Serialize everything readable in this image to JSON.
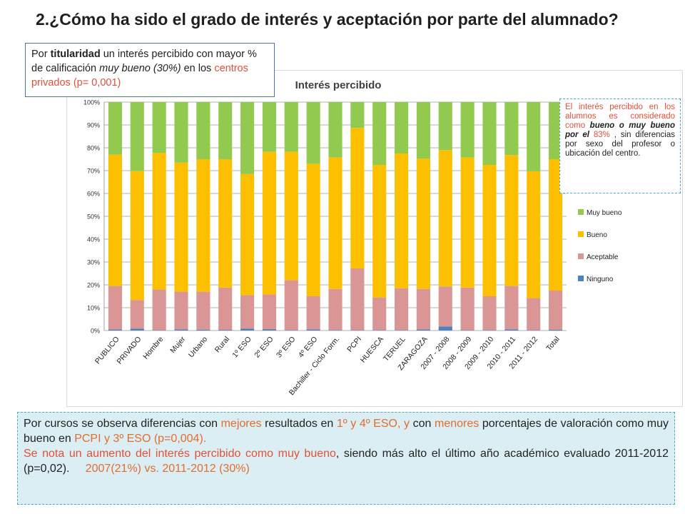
{
  "slide": {
    "title": "2.¿Cómo ha sido el grado de interés y aceptación por parte del alumnado?"
  },
  "note_titularidad": {
    "t1": "Por ",
    "t2": "titularidad",
    "t3": " un interés percibido con mayor % de calificación ",
    "t4": "muy bueno (30%)",
    "t5": " en los ",
    "t6": "centros privados (p= 0,001)"
  },
  "side_note": {
    "t1": "El interés percibido en los alumnos es considerado como ",
    "t2": "bueno o muy bueno por el",
    "t3": " ",
    "t4": "83%",
    "t5": " , sin diferencias por sexo del profesor o ubicación del centro."
  },
  "bottom_note": {
    "p1a": "Por cursos se observa diferencias con ",
    "p1b": "mejores",
    "p1c": " resultados en ",
    "p1d": "1º y 4º ESO, y",
    "p1e": " con ",
    "p1f": "menores",
    "p1g": " porcentajes de valoración como muy bueno en ",
    "p1h": "PCPI y 3º ESO (p=0,004).",
    "p2a": "Se nota un aumento del interés percibido como muy bueno",
    "p2b": ", siendo más alto el último año académico evaluado 2011-2012 (p=0,02).",
    "p2c": "2007(21%) vs. 2011-2012 (30%)"
  },
  "colors": {
    "muy_bueno": "#92c94f",
    "bueno": "#fdc000",
    "aceptable": "#d99694",
    "ninguno": "#4f81bd",
    "accent_red": "#e0503a",
    "accent_orange": "#e36c2e"
  },
  "chart_data": {
    "type": "bar",
    "stacked": true,
    "percent": true,
    "title": "Interés percibido",
    "xlabel": "",
    "ylabel": "",
    "ylim": [
      0,
      100
    ],
    "y_ticks": [
      "0%",
      "10%",
      "20%",
      "30%",
      "40%",
      "50%",
      "60%",
      "70%",
      "80%",
      "90%",
      "100%"
    ],
    "grid": true,
    "legend_position": "right",
    "categories": [
      "PUBLICO",
      "PRIVADO",
      "Hombre",
      "Mujer",
      "Urbano",
      "Rural",
      "1º ESO",
      "2º ESO",
      "3º ESO",
      "4º ESO",
      "Bachiller - Ciclo Form.",
      "PCPI",
      "HUESCA",
      "TERUEL",
      "ZARAGOZA",
      "2007 - 2008",
      "2008 - 2009",
      "2009 - 2010",
      "2010 - 2011",
      "2011 - 2012",
      "Total"
    ],
    "series": [
      {
        "name": "Ninguno",
        "values": [
          0.5,
          0.8,
          0.2,
          0.5,
          0.4,
          0.3,
          0.8,
          0.6,
          0.2,
          0.5,
          0.2,
          0.2,
          0.2,
          0.2,
          0.5,
          1.8,
          0.2,
          0.2,
          0.5,
          0.2,
          0.4
        ]
      },
      {
        "name": "Aceptable",
        "values": [
          19,
          12.5,
          17.8,
          16.5,
          16.6,
          18.5,
          14.7,
          15.2,
          21.8,
          14.5,
          18,
          27,
          14.3,
          18.3,
          17.7,
          17.5,
          18.6,
          14.8,
          19,
          14,
          17.1
        ]
      },
      {
        "name": "Bueno",
        "values": [
          57.5,
          56.5,
          59.8,
          56.5,
          58,
          56.2,
          53,
          62.4,
          56.3,
          58,
          57.6,
          61.5,
          58,
          59,
          57,
          59.7,
          57,
          57.5,
          57.3,
          55.5,
          57.5
        ]
      },
      {
        "name": "Muy bueno",
        "values": [
          23,
          30.2,
          22.2,
          26.5,
          25,
          25,
          31.5,
          21.8,
          21.7,
          27,
          24.2,
          11.3,
          27.5,
          22.5,
          24.8,
          21,
          24.2,
          27.5,
          23.2,
          30.3,
          25
        ]
      }
    ]
  }
}
